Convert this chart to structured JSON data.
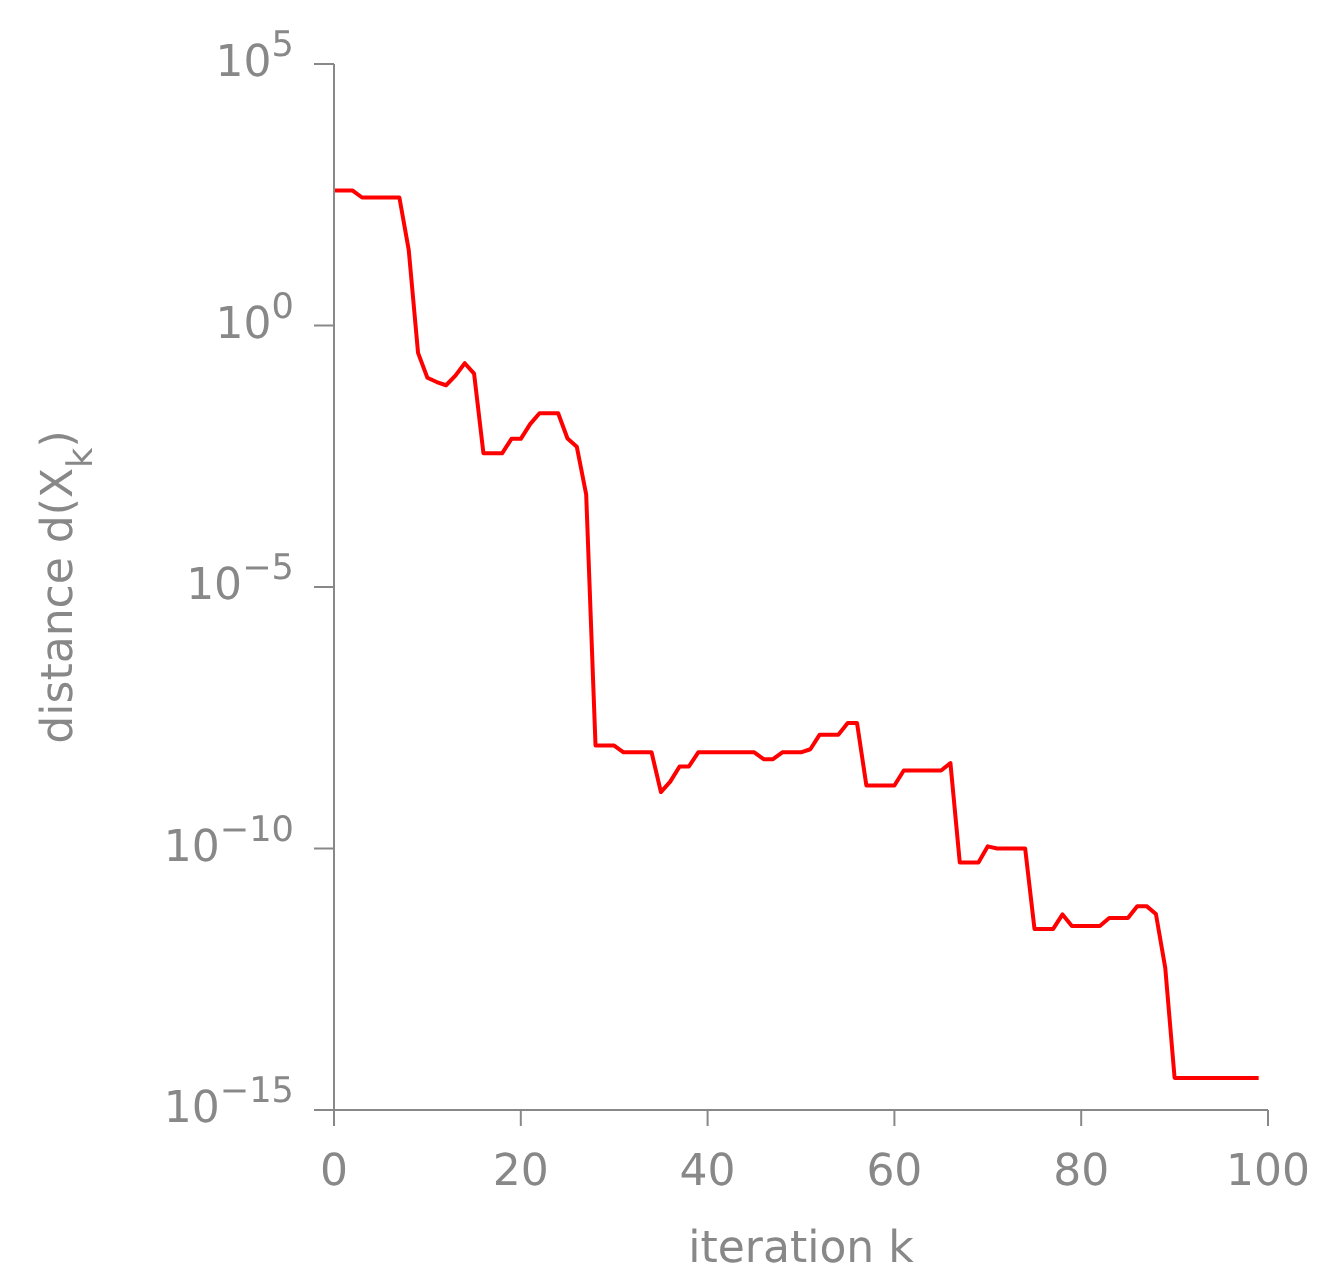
{
  "chart_data": {
    "type": "line",
    "xlabel": "iteration k",
    "ylabel": "distance d(X$_{k}$)",
    "log": "y",
    "grid": false,
    "legend": false,
    "marker": "none",
    "line_style": "solid",
    "xlim": [
      0,
      100
    ],
    "xticks": [
      0,
      20,
      40,
      60,
      80,
      100
    ],
    "ylim": [
      1e-15,
      100000
    ],
    "yticks": [
      {
        "value": 1e-15,
        "label": "10$^{−15}$"
      },
      {
        "value": 1e-10,
        "label": "10$^{−10}$"
      },
      {
        "value": 1e-05,
        "label": "10$^{−5}$"
      },
      {
        "value": 1,
        "label": "10$^{0}$"
      },
      {
        "value": 100000,
        "label": "10$^{5}$"
      }
    ],
    "x": [
      0,
      2,
      3,
      7,
      8,
      9,
      10,
      11,
      12,
      13,
      14,
      15,
      16,
      18,
      19,
      20,
      21,
      22,
      24,
      25,
      26,
      27,
      28,
      30,
      31,
      34,
      35,
      36,
      37,
      38,
      39,
      45,
      46,
      47,
      48,
      50,
      51,
      52,
      54,
      55,
      56,
      57,
      60,
      61,
      65,
      66,
      67,
      69,
      70,
      71,
      74,
      75,
      77,
      78,
      79,
      82,
      83,
      85,
      86,
      87,
      88,
      89,
      90,
      99
    ],
    "series": [
      {
        "color": "#ff0000",
        "values": [
          380,
          380,
          280,
          280,
          28,
          0.3,
          0.1,
          0.083,
          0.072,
          0.11,
          0.19,
          0.12,
          0.0036,
          0.0036,
          0.0068,
          0.0068,
          0.013,
          0.021,
          0.021,
          0.0069,
          0.0048,
          0.00059,
          9.3e-09,
          9.3e-09,
          6.9e-09,
          6.9e-09,
          1.2e-09,
          1.9e-09,
          3.7e-09,
          3.7e-09,
          6.9e-09,
          6.9e-09,
          5.1e-09,
          5.1e-09,
          6.9e-09,
          6.9e-09,
          7.9e-09,
          1.5e-08,
          1.5e-08,
          2.5e-08,
          2.5e-08,
          1.6e-09,
          1.6e-09,
          3.1e-09,
          3.1e-09,
          4.3e-09,
          5.4e-11,
          5.4e-11,
          1.1e-10,
          1e-10,
          1e-10,
          2.9e-12,
          2.9e-12,
          5.5e-12,
          3.3e-12,
          3.3e-12,
          4.7e-12,
          4.7e-12,
          7.9e-12,
          7.9e-12,
          5.6e-12,
          5.2e-13,
          4.1e-15,
          4.1e-15
        ]
      }
    ]
  }
}
